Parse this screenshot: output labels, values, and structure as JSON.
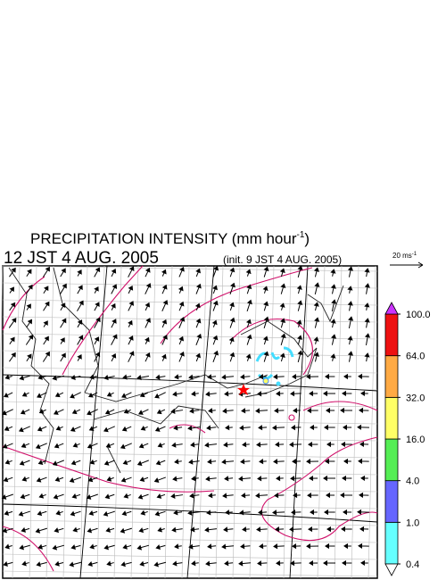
{
  "header": {
    "title": "PRECIPITATION INTENSITY (mm hour",
    "title_sup": "-1",
    "title_end": ")",
    "valid_time": "12 JST 4 AUG. 2005",
    "init_time": "(init. 9 JST 4 AUG. 2005)"
  },
  "vector_legend": {
    "label": "20 ms",
    "label_sup": "-1"
  },
  "colorbar": {
    "levels": [
      {
        "value": 0.4,
        "label": "0.4"
      },
      {
        "value": 1,
        "label": "1.0"
      },
      {
        "value": 4,
        "label": "4.0"
      },
      {
        "value": 16,
        "label": "16.0"
      },
      {
        "value": 32,
        "label": "32.0"
      },
      {
        "value": 64,
        "label": "64.0"
      },
      {
        "value": 100,
        "label": "100.0"
      }
    ],
    "colors": [
      "#66ffff",
      "#6666ff",
      "#55ee55",
      "#ffff66",
      "#ffaa44",
      "#ee1111"
    ],
    "under_color": "#ffffff",
    "over_color": "#cc33ff"
  }
}
